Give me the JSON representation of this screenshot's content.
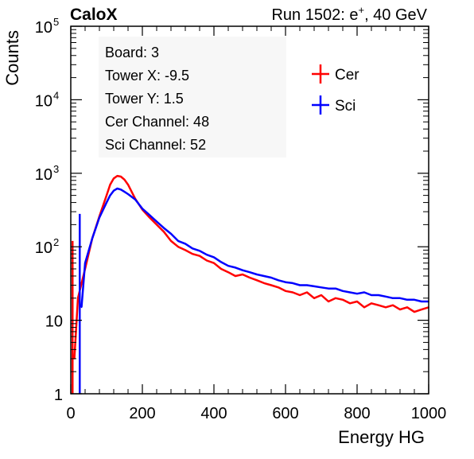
{
  "header": {
    "experiment": "CaloX",
    "run_prefix": "Run 1502: e",
    "run_sup": "+",
    "run_suffix": ", 40 GeV"
  },
  "info_box": {
    "lines": [
      "Board: 3",
      "Tower X: -9.5",
      "Tower Y: 1.5",
      "Cer Channel: 48",
      "Sci Channel: 52"
    ]
  },
  "chart_data": {
    "type": "line",
    "title": "",
    "xlabel": "Energy HG",
    "ylabel": "Counts",
    "xlim": [
      0,
      1000
    ],
    "ylim": [
      1,
      100000
    ],
    "yscale": "log",
    "grid": false,
    "legend_position": "top-right",
    "x_ticks": [
      0,
      200,
      400,
      600,
      800,
      1000
    ],
    "x_tick_labels": [
      "0",
      "200",
      "400",
      "600",
      "800",
      "1000"
    ],
    "y_ticks": [
      {
        "value": 1,
        "base": "1",
        "exp": ""
      },
      {
        "value": 10,
        "base": "10",
        "exp": ""
      },
      {
        "value": 100,
        "base": "10",
        "exp": "2"
      },
      {
        "value": 1000,
        "base": "10",
        "exp": "3"
      },
      {
        "value": 10000,
        "base": "10",
        "exp": "4"
      },
      {
        "value": 100000,
        "base": "10",
        "exp": "5"
      }
    ],
    "series": [
      {
        "name": "Cer",
        "color": "#ff0000",
        "spike": {
          "x": 5,
          "y": 120
        },
        "x": [
          10,
          20,
          40,
          60,
          80,
          100,
          110,
          120,
          130,
          140,
          150,
          160,
          180,
          200,
          220,
          240,
          260,
          280,
          300,
          320,
          340,
          360,
          380,
          400,
          420,
          440,
          460,
          480,
          500,
          520,
          540,
          560,
          580,
          600,
          620,
          640,
          660,
          680,
          700,
          720,
          740,
          760,
          780,
          800,
          820,
          840,
          860,
          880,
          900,
          920,
          940,
          960,
          980,
          1000
        ],
        "y": [
          3,
          20,
          50,
          130,
          260,
          500,
          700,
          850,
          920,
          900,
          820,
          700,
          450,
          320,
          250,
          200,
          160,
          120,
          100,
          90,
          80,
          75,
          65,
          60,
          50,
          45,
          40,
          42,
          38,
          35,
          32,
          30,
          28,
          25,
          24,
          22,
          24,
          20,
          22,
          18,
          20,
          19,
          17,
          18,
          15,
          17,
          16,
          15,
          16,
          14,
          15,
          13,
          14,
          15
        ]
      },
      {
        "name": "Sci",
        "color": "#0000ff",
        "spike": {
          "x": 25,
          "y": 280
        },
        "x": [
          30,
          40,
          60,
          80,
          100,
          110,
          120,
          130,
          140,
          150,
          160,
          180,
          200,
          220,
          240,
          260,
          280,
          300,
          320,
          340,
          360,
          380,
          400,
          420,
          440,
          460,
          480,
          500,
          520,
          540,
          560,
          580,
          600,
          620,
          640,
          660,
          680,
          700,
          720,
          740,
          760,
          780,
          800,
          820,
          840,
          860,
          880,
          900,
          920,
          940,
          960,
          980,
          1000
        ],
        "y": [
          15,
          60,
          130,
          250,
          400,
          500,
          580,
          620,
          600,
          560,
          520,
          440,
          330,
          270,
          220,
          180,
          150,
          120,
          110,
          95,
          88,
          78,
          72,
          62,
          55,
          52,
          48,
          45,
          42,
          40,
          38,
          35,
          33,
          32,
          30,
          30,
          29,
          28,
          27,
          27,
          25,
          24,
          23,
          24,
          22,
          22,
          21,
          20,
          20,
          19,
          19,
          18,
          18
        ]
      }
    ]
  }
}
